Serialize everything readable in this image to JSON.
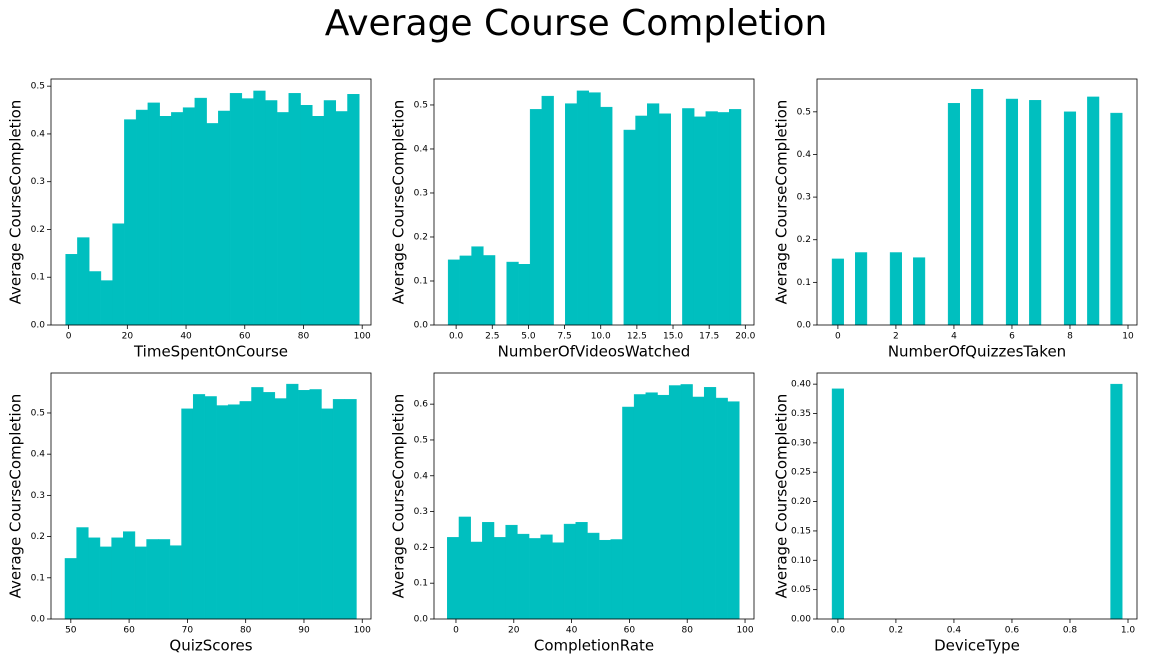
{
  "title": "Average Course Completion",
  "chart_data": [
    {
      "type": "histogram",
      "xlabel": "TimeSpentOnCourse",
      "ylabel": "Average CourseCompletion",
      "color": "#00bfbf",
      "bins": [
        -1,
        3,
        7,
        11,
        15,
        19,
        23,
        27,
        31,
        35,
        39,
        43,
        47,
        51,
        55,
        59,
        63,
        67,
        71,
        75,
        79,
        83,
        87,
        91,
        95,
        99
      ],
      "values": [
        0.148,
        0.183,
        0.112,
        0.093,
        0.212,
        0.43,
        0.45,
        0.465,
        0.437,
        0.445,
        0.455,
        0.475,
        0.422,
        0.448,
        0.485,
        0.474,
        0.49,
        0.47,
        0.445,
        0.485,
        0.46,
        0.437,
        0.47,
        0.447,
        0.483
      ],
      "xlim": [
        -6,
        103
      ],
      "xticks": [
        0,
        20,
        40,
        60,
        80,
        100
      ],
      "ylim": [
        0,
        0.515
      ],
      "yticks": [
        {
          "value": 0,
          "label": "0.0"
        },
        0.1,
        0.2,
        0.3,
        0.4,
        0.5
      ]
    },
    {
      "type": "histogram",
      "xlabel": "NumberOfVideosWatched",
      "ylabel": "Average CourseCompletion",
      "color": "#00bfbf",
      "bins": [
        -0.55,
        0.26,
        1.07,
        1.88,
        2.69,
        3.5,
        4.31,
        5.12,
        5.93,
        6.74,
        7.55,
        8.36,
        9.17,
        9.98,
        10.79,
        11.6,
        12.41,
        13.22,
        14.03,
        14.84,
        15.65,
        16.46,
        17.27,
        18.08,
        18.89,
        19.7
      ],
      "values": [
        0.148,
        0.157,
        0.178,
        0.158,
        null,
        0.143,
        0.138,
        0.49,
        0.52,
        null,
        0.503,
        0.532,
        0.528,
        0.495,
        null,
        0.443,
        0.475,
        0.503,
        0.48,
        null,
        0.492,
        0.473,
        0.485,
        0.483,
        0.49
      ],
      "xlim": [
        -1.53,
        20.6
      ],
      "xticks": [
        {
          "value": 0,
          "label": "0.0"
        },
        2.5,
        {
          "value": 5,
          "label": "5.0"
        },
        7.5,
        {
          "value": 10,
          "label": "10.0"
        },
        12.5,
        {
          "value": 15,
          "label": "15.0"
        },
        17.5,
        {
          "value": 20,
          "label": "20.0"
        }
      ],
      "ylim": [
        0,
        0.559
      ],
      "yticks": [
        {
          "value": 0,
          "label": "0.0"
        },
        0.1,
        0.2,
        0.3,
        0.4,
        0.5
      ]
    },
    {
      "type": "histogram",
      "xlabel": "NumberOfQuizzesTaken",
      "ylabel": "Average CourseCompletion",
      "color": "#00bfbf",
      "bins": [
        -0.2,
        0.2,
        0.6,
        1.0,
        1.4,
        1.8,
        2.2,
        2.6,
        3.0,
        3.4,
        3.8,
        4.2,
        4.6,
        5.0,
        5.4,
        5.8,
        6.2,
        6.6,
        7.0,
        7.4,
        7.8,
        8.2,
        8.6,
        9.0,
        9.4,
        9.8
      ],
      "values": [
        0.155,
        null,
        0.17,
        null,
        null,
        0.17,
        null,
        0.158,
        null,
        null,
        0.52,
        null,
        0.553,
        null,
        null,
        0.53,
        null,
        0.527,
        null,
        null,
        0.5,
        null,
        0.535,
        null,
        0.497
      ],
      "xlim": [
        -0.72,
        10.31
      ],
      "xticks": [
        0,
        2,
        4,
        6,
        8,
        10
      ],
      "ylim": [
        0,
        0.577
      ],
      "yticks": [
        {
          "value": 0,
          "label": "0.0"
        },
        0.1,
        0.2,
        0.3,
        0.4,
        0.5
      ]
    },
    {
      "type": "histogram",
      "xlabel": "QuizScores",
      "ylabel": "Average CourseCompletion",
      "color": "#00bfbf",
      "bins": [
        49,
        51,
        53,
        55,
        57,
        59,
        61,
        63,
        65,
        67,
        69,
        71,
        73,
        75,
        77,
        79,
        81,
        83,
        85,
        87,
        89,
        91,
        93,
        95,
        97,
        99
      ],
      "values": [
        0.147,
        0.222,
        0.197,
        0.175,
        0.197,
        0.212,
        0.175,
        0.193,
        0.193,
        0.178,
        0.51,
        0.545,
        0.54,
        0.518,
        0.52,
        0.528,
        0.562,
        0.55,
        0.535,
        0.57,
        0.555,
        0.557,
        0.51,
        0.533,
        0.533
      ],
      "xlim": [
        46.6,
        101.5
      ],
      "xticks": [
        50,
        60,
        70,
        80,
        90,
        100
      ],
      "ylim": [
        0,
        0.597
      ],
      "yticks": [
        {
          "value": 0,
          "label": "0.0"
        },
        0.1,
        0.2,
        0.3,
        0.4,
        0.5
      ]
    },
    {
      "type": "histogram",
      "xlabel": "CompletionRate",
      "ylabel": "Average CourseCompletion",
      "color": "#00bfbf",
      "bins": [
        -3,
        1.04,
        5.08,
        9.12,
        13.16,
        17.2,
        21.24,
        25.28,
        29.32,
        33.36,
        37.4,
        41.44,
        45.48,
        49.52,
        53.56,
        57.6,
        61.64,
        65.68,
        69.72,
        73.76,
        77.8,
        81.84,
        85.88,
        89.92,
        93.96,
        98
      ],
      "values": [
        0.228,
        0.285,
        0.215,
        0.27,
        0.228,
        0.262,
        0.237,
        0.225,
        0.235,
        0.213,
        0.265,
        0.27,
        0.24,
        0.22,
        0.222,
        0.592,
        0.627,
        0.632,
        0.625,
        0.652,
        0.655,
        0.62,
        0.647,
        0.617,
        0.607
      ],
      "xlim": [
        -7.6,
        103.1
      ],
      "xticks": [
        0,
        20,
        40,
        60,
        80,
        100
      ],
      "ylim": [
        0,
        0.687
      ],
      "yticks": [
        {
          "value": 0,
          "label": "0.0"
        },
        0.1,
        0.2,
        0.3,
        0.4,
        0.5,
        0.6
      ]
    },
    {
      "type": "histogram",
      "xlabel": "DeviceType",
      "ylabel": "Average CourseCompletion",
      "color": "#00bfbf",
      "bins": [
        -0.02,
        0.02,
        0.06,
        0.1,
        0.14,
        0.18,
        0.22,
        0.26,
        0.3,
        0.34,
        0.38,
        0.42,
        0.46,
        0.5,
        0.54,
        0.58,
        0.62,
        0.66,
        0.7,
        0.74,
        0.78,
        0.82,
        0.86,
        0.9,
        0.94,
        0.98
      ],
      "values": [
        0.392,
        null,
        null,
        null,
        null,
        null,
        null,
        null,
        null,
        null,
        null,
        null,
        null,
        null,
        null,
        null,
        null,
        null,
        null,
        null,
        null,
        null,
        null,
        null,
        0.4
      ],
      "xlim": [
        -0.072,
        1.031
      ],
      "xticks": [
        {
          "value": 0,
          "label": "0.0"
        },
        0.2,
        0.4,
        0.6,
        0.8,
        {
          "value": 1,
          "label": "1.0"
        }
      ],
      "ylim": [
        0,
        0.419
      ],
      "yticks": [
        {
          "value": 0,
          "label": "0.00"
        },
        0.05,
        {
          "value": 0.1,
          "label": "0.10"
        },
        0.15,
        {
          "value": 0.2,
          "label": "0.20"
        },
        0.25,
        {
          "value": 0.3,
          "label": "0.30"
        },
        0.35,
        {
          "value": 0.4,
          "label": "0.40"
        }
      ]
    }
  ]
}
